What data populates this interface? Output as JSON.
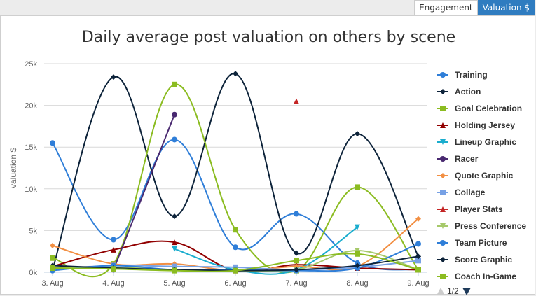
{
  "tabs": [
    {
      "label": "Engagement",
      "active": false
    },
    {
      "label": "Valuation $",
      "active": true
    }
  ],
  "chart_data": {
    "type": "line",
    "title": "Daily average post valuation on others by scene",
    "xlabel": "",
    "ylabel": "valuation $",
    "categories": [
      "3. Aug",
      "4. Aug",
      "5. Aug",
      "6. Aug",
      "7. Aug",
      "8. Aug",
      "9. Aug"
    ],
    "yticks": [
      "0k",
      "5k",
      "10k",
      "15k",
      "20k",
      "25k"
    ],
    "ylim": [
      0,
      25000
    ],
    "grid": true,
    "legend_position": "right",
    "legend_page": "1/2",
    "series": [
      {
        "name": "Training",
        "color": "#2f7ed8",
        "marker": "circle",
        "values": [
          15500,
          3900,
          15900,
          3000,
          7000,
          1100,
          300
        ]
      },
      {
        "name": "Action",
        "color": "#0d233a",
        "marker": "diamond",
        "values": [
          300,
          23400,
          6700,
          23800,
          2300,
          16600,
          1900
        ]
      },
      {
        "name": "Goal Celebration",
        "color": "#8bbc21",
        "marker": "square",
        "values": [
          1700,
          1000,
          22500,
          5100,
          200,
          10200,
          300
        ]
      },
      {
        "name": "Holding Jersey",
        "color": "#910000",
        "marker": "triangle",
        "values": [
          700,
          2700,
          3600,
          200,
          900,
          500,
          300
        ]
      },
      {
        "name": "Lineup Graphic",
        "color": "#1aadce",
        "marker": "triangle-down",
        "values": [
          null,
          null,
          2800,
          300,
          300,
          5400,
          null
        ]
      },
      {
        "name": "Racer",
        "color": "#492970",
        "marker": "circle",
        "values": [
          null,
          300,
          18900,
          null,
          null,
          null,
          300
        ]
      },
      {
        "name": "Quote Graphic",
        "color": "#f28f43",
        "marker": "diamond",
        "values": [
          3200,
          1000,
          1000,
          200,
          700,
          700,
          6400
        ]
      },
      {
        "name": "Collage",
        "color": "#77a1e5",
        "marker": "square",
        "values": [
          400,
          800,
          700,
          600,
          300,
          600,
          1400
        ]
      },
      {
        "name": "Player Stats",
        "color": "#c42525",
        "marker": "triangle",
        "values": [
          null,
          null,
          null,
          null,
          20500,
          null,
          null
        ]
      },
      {
        "name": "Press Conference",
        "color": "#a6c96a",
        "marker": "triangle-down",
        "values": [
          500,
          600,
          300,
          200,
          300,
          2600,
          300
        ]
      },
      {
        "name": "Team Picture",
        "color": "#2f7ed8",
        "marker": "circle",
        "values": [
          200,
          800,
          300,
          300,
          200,
          500,
          3400
        ]
      },
      {
        "name": "Score Graphic",
        "color": "#0d233a",
        "marker": "diamond",
        "values": [
          800,
          500,
          300,
          200,
          300,
          800,
          1900
        ]
      },
      {
        "name": "Coach In-Game",
        "color": "#8bbc21",
        "marker": "square",
        "values": [
          500,
          400,
          200,
          200,
          1400,
          2200,
          300
        ]
      }
    ]
  }
}
